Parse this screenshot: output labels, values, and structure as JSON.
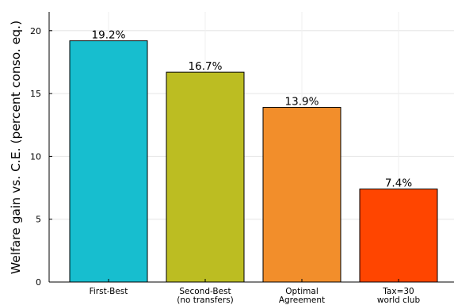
{
  "chart_data": {
    "type": "bar",
    "title": "",
    "xlabel": "",
    "ylabel": "Welfare gain vs. C.E. (percent conso. eq.)",
    "categories": [
      [
        "First-Best"
      ],
      [
        "Second-Best",
        "(no transfers)"
      ],
      [
        "Optimal",
        "Agreement"
      ],
      [
        "Tax=30",
        "world club"
      ]
    ],
    "values": [
      19.2,
      16.7,
      13.9,
      7.4
    ],
    "data_labels": [
      "19.2%",
      "16.7%",
      "13.9%",
      "7.4%"
    ],
    "colors": [
      "#17becf",
      "#bcbd22",
      "#f28e2b",
      "#ff4500"
    ],
    "ylim": [
      0,
      21.5
    ],
    "yticks": [
      0,
      5,
      10,
      15,
      20
    ],
    "grid": true,
    "legend": "none"
  }
}
